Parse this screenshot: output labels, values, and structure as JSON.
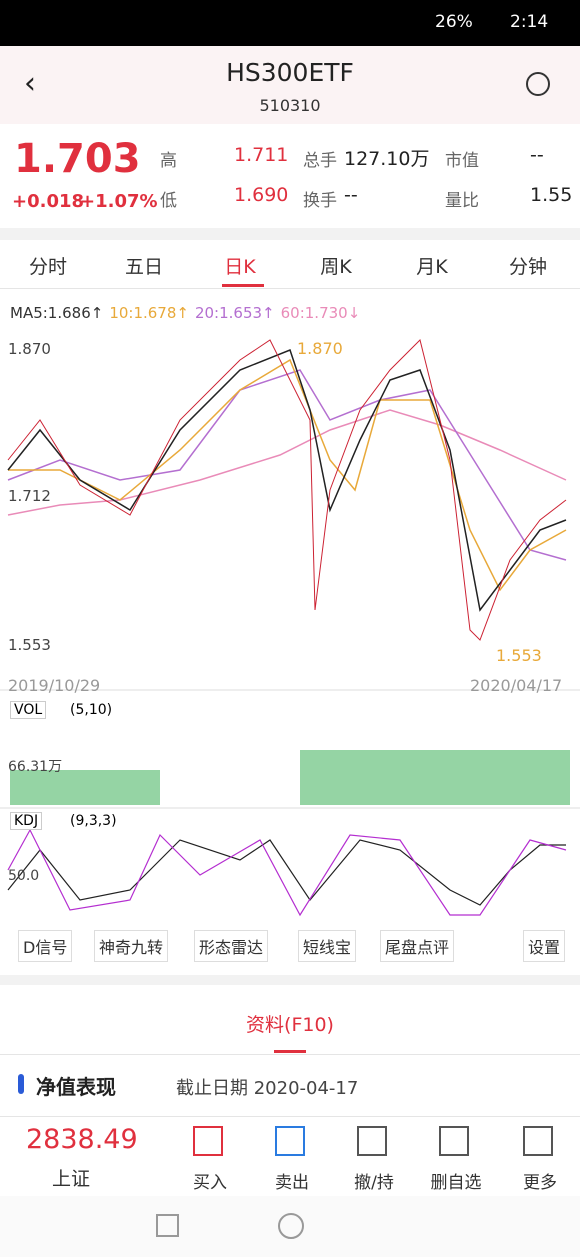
{
  "status": {
    "battery": "26%",
    "time": "2:14"
  },
  "header": {
    "title": "HS300ETF",
    "code": "510310"
  },
  "quote": {
    "price": "1.703",
    "change": "+0.018",
    "pct": "+1.07%",
    "fields": [
      {
        "label": "高",
        "value": "1.711"
      },
      {
        "label": "总手",
        "value": "127.10万"
      },
      {
        "label": "市值",
        "value": "--"
      },
      {
        "label": "低",
        "value": "1.690"
      },
      {
        "label": "换手",
        "value": "--"
      },
      {
        "label": "量比",
        "value": "1.55"
      }
    ]
  },
  "tabs": [
    "分时",
    "五日",
    "日K",
    "周K",
    "月K",
    "分钟"
  ],
  "ma": [
    {
      "text": "MA5:1.686↑",
      "color": "#333333"
    },
    {
      "text": "10:1.678↑",
      "color": "#e8a93a"
    },
    {
      "text": "20:1.653↑",
      "color": "#b46fd0"
    },
    {
      "text": "60:1.730↓",
      "color": "#e98bb8"
    }
  ],
  "price_chart": {
    "top": "1.870",
    "mid": "1.712",
    "bottom": "1.553",
    "high_mark": "1.870",
    "low_mark": "1.553",
    "start_date": "2019/10/29",
    "end_date": "2020/04/17"
  },
  "vol": {
    "label": "VOL",
    "params": "(5,10)",
    "axis": "66.31万"
  },
  "kdj": {
    "label": "KDJ",
    "params": "(9,3,3)",
    "axis": "50.0"
  },
  "tools": [
    "D信号",
    "神奇九转",
    "形态雷达",
    "短线宝",
    "尾盘点评",
    "设置"
  ],
  "section_tab": "资料(F10)",
  "nav": {
    "title": "净值表现",
    "date": "截止日期 2020-04-17"
  },
  "bottom": {
    "index_value": "2838.49",
    "index_name": "上证",
    "actions": [
      "买入",
      "卖出",
      "撤/持",
      "删自选",
      "更多"
    ]
  }
}
